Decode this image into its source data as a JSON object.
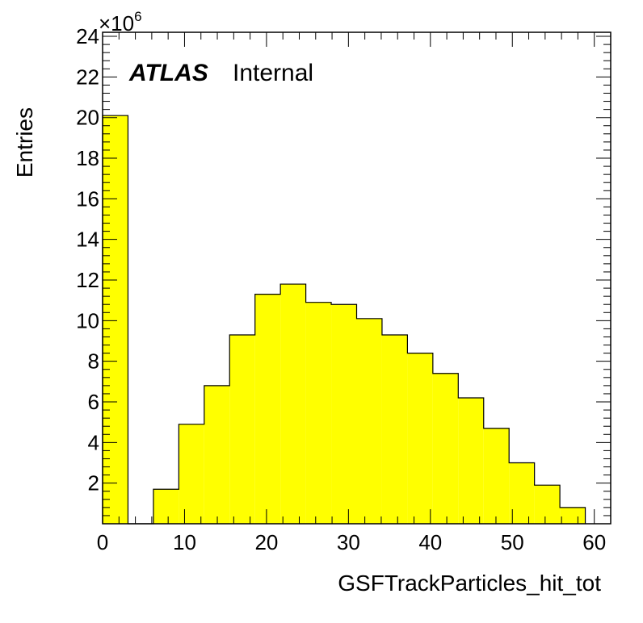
{
  "chart_data": {
    "type": "bar",
    "style": "histogram",
    "xlabel": "GSFTrackParticles_hit_tot",
    "ylabel": "Entries",
    "y_multiplier": "×10",
    "y_multiplier_exponent": "6",
    "xlim": [
      0,
      62
    ],
    "ylim": [
      0,
      24.2
    ],
    "x_ticks": [
      0,
      10,
      20,
      30,
      40,
      50,
      60
    ],
    "y_ticks": [
      2,
      4,
      6,
      8,
      10,
      12,
      14,
      16,
      18,
      20,
      22,
      24
    ],
    "bins": [
      {
        "x0": 0,
        "x1": 3.1,
        "value": 20.1
      },
      {
        "x0": 3.1,
        "x1": 6.2,
        "value": 0
      },
      {
        "x0": 6.2,
        "x1": 9.3,
        "value": 1.7
      },
      {
        "x0": 9.3,
        "x1": 12.4,
        "value": 4.9
      },
      {
        "x0": 12.4,
        "x1": 15.5,
        "value": 6.8
      },
      {
        "x0": 15.5,
        "x1": 18.6,
        "value": 9.3
      },
      {
        "x0": 18.6,
        "x1": 21.7,
        "value": 11.3
      },
      {
        "x0": 21.7,
        "x1": 24.8,
        "value": 11.8
      },
      {
        "x0": 24.8,
        "x1": 27.9,
        "value": 10.9
      },
      {
        "x0": 27.9,
        "x1": 31.0,
        "value": 10.8
      },
      {
        "x0": 31.0,
        "x1": 34.1,
        "value": 10.1
      },
      {
        "x0": 34.1,
        "x1": 37.2,
        "value": 9.3
      },
      {
        "x0": 37.2,
        "x1": 40.3,
        "value": 8.4
      },
      {
        "x0": 40.3,
        "x1": 43.4,
        "value": 7.4
      },
      {
        "x0": 43.4,
        "x1": 46.5,
        "value": 6.2
      },
      {
        "x0": 46.5,
        "x1": 49.6,
        "value": 4.7
      },
      {
        "x0": 49.6,
        "x1": 52.7,
        "value": 3.0
      },
      {
        "x0": 52.7,
        "x1": 55.8,
        "value": 1.9
      },
      {
        "x0": 55.8,
        "x1": 58.9,
        "value": 0.8
      }
    ],
    "fill_color": "#ffff00",
    "line_color": "#000000",
    "grid": false,
    "legend": "none"
  },
  "annotation": {
    "atlas": "ATLAS",
    "internal": "Internal"
  }
}
